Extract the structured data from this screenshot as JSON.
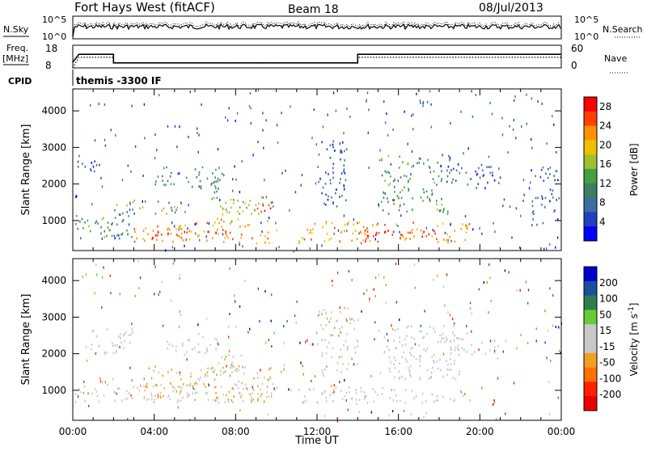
{
  "header": {
    "radar": "Fort Hays West (fitACF)",
    "beam": "Beam 18",
    "date": "08/Jul/2013"
  },
  "top_panels": {
    "nsky_label": "N.Sky",
    "nsky_ticks": [
      "10^5",
      "10^0"
    ],
    "nsearch_label": "N.Search",
    "nsearch_ticks": [
      "10^5",
      "10^0"
    ],
    "freq_label": "Freq.",
    "freq_unit": "[MHz]",
    "freq_ticks": [
      "18",
      "8"
    ],
    "nave_label": "Nave",
    "nave_ticks": [
      "60",
      "0"
    ],
    "cpid_label": "CPID",
    "cpid_text": "themis  -3300  IF"
  },
  "colors": {
    "power": [
      "#0000ff",
      "#2040c0",
      "#3a6fa0",
      "#3d8060",
      "#44a040",
      "#a0c030",
      "#f0c000",
      "#ff9000",
      "#ff4000",
      "#ff0000"
    ],
    "velocity": [
      "#0000cc",
      "#1a4fa0",
      "#2e7d50",
      "#66cc33",
      "#c8c8c8",
      "#c8c8c8",
      "#f0a020",
      "#ff7000",
      "#ff2000",
      "#ee0000"
    ],
    "ground_scatter": "#b4b4b4"
  },
  "chart_data": [
    {
      "type": "line",
      "name": "freq-nave",
      "x_hours": [
        0.0,
        0.3,
        2.0,
        2.0,
        14.0,
        14.0,
        24.0
      ],
      "freq_mhz": [
        10.5,
        14.0,
        14.0,
        10.2,
        10.2,
        14.0,
        14.0
      ],
      "nave": [
        0,
        28,
        28,
        14,
        14,
        28,
        28
      ],
      "freq_range": [
        8,
        18
      ],
      "nave_range": [
        0,
        60
      ]
    },
    {
      "type": "heatmap",
      "name": "power",
      "title": "",
      "ylabel": "Slant Range [km]",
      "xlabel": "",
      "xlim_hours": [
        0,
        24
      ],
      "ylim_km": [
        180,
        4600
      ],
      "xticks": [
        "00:00",
        "04:00",
        "08:00",
        "12:00",
        "16:00",
        "20:00",
        "00:00"
      ],
      "yticks": [
        1000,
        2000,
        3000,
        4000
      ],
      "colorbar": {
        "label": "Power [dB]",
        "ticks": [
          4,
          8,
          12,
          16,
          20,
          24,
          28
        ],
        "range": [
          0,
          30
        ]
      },
      "regions": [
        {
          "t0": 3.0,
          "t1": 10.0,
          "r0": 400,
          "r1": 1000,
          "value": 22
        },
        {
          "t0": 3.8,
          "t1": 7.5,
          "r0": 500,
          "r1": 800,
          "value": 27
        },
        {
          "t0": 6.8,
          "t1": 10.0,
          "r0": 1000,
          "r1": 1700,
          "value": 16
        },
        {
          "t0": 8.8,
          "t1": 9.8,
          "r0": 1200,
          "r1": 1600,
          "value": 26
        },
        {
          "t0": 2.0,
          "t1": 5.5,
          "r0": 1200,
          "r1": 1600,
          "value": 14
        },
        {
          "t0": 4.0,
          "t1": 7.5,
          "r0": 1900,
          "r1": 2500,
          "value": 12
        },
        {
          "t0": 0.1,
          "t1": 3.0,
          "r0": 500,
          "r1": 1200,
          "value": 12
        },
        {
          "t0": 0.2,
          "t1": 1.5,
          "r0": 2300,
          "r1": 2800,
          "value": 6
        },
        {
          "t0": 11.0,
          "t1": 19.5,
          "r0": 400,
          "r1": 1000,
          "value": 22
        },
        {
          "t0": 14.0,
          "t1": 18.0,
          "r0": 450,
          "r1": 750,
          "value": 27
        },
        {
          "t0": 15.0,
          "t1": 18.5,
          "r0": 1200,
          "r1": 2800,
          "value": 12
        },
        {
          "t0": 18.0,
          "t1": 21.0,
          "r0": 2000,
          "r1": 2600,
          "value": 6
        },
        {
          "t0": 12.0,
          "t1": 13.5,
          "r0": 1400,
          "r1": 3200,
          "value": 6
        },
        {
          "t0": 22.5,
          "t1": 23.9,
          "r0": 900,
          "r1": 2500,
          "value": 6
        }
      ]
    },
    {
      "type": "heatmap",
      "name": "velocity",
      "title": "",
      "ylabel": "Slant Range [km]",
      "xlabel": "Time UT",
      "xlim_hours": [
        0,
        24
      ],
      "ylim_km": [
        180,
        4600
      ],
      "xticks": [
        "00:00",
        "04:00",
        "08:00",
        "12:00",
        "16:00",
        "20:00",
        "00:00"
      ],
      "yticks": [
        1000,
        2000,
        3000,
        4000
      ],
      "colorbar": {
        "label": "Velocity [m s^-1]",
        "ticks": [
          200,
          100,
          50,
          15,
          -15,
          -50,
          -100,
          -200
        ],
        "range": [
          -250,
          250
        ]
      },
      "regions": [
        {
          "t0": 0.1,
          "t1": 10.0,
          "r0": 700,
          "r1": 1200,
          "value": 0
        },
        {
          "t0": 3.5,
          "t1": 9.8,
          "r0": 700,
          "r1": 1700,
          "value": -60
        },
        {
          "t0": 6.5,
          "t1": 8.3,
          "r0": 1500,
          "r1": 2000,
          "value": 40
        },
        {
          "t0": 4.5,
          "t1": 7.5,
          "r0": 2000,
          "r1": 2500,
          "value": 0
        },
        {
          "t0": 0.5,
          "t1": 3.0,
          "r0": 2000,
          "r1": 2700,
          "value": 0
        },
        {
          "t0": 11.0,
          "t1": 19.5,
          "r0": 650,
          "r1": 1100,
          "value": 0
        },
        {
          "t0": 15.0,
          "t1": 19.0,
          "r0": 1300,
          "r1": 2800,
          "value": 0
        },
        {
          "t0": 18.0,
          "t1": 21.0,
          "r0": 2000,
          "r1": 2600,
          "value": 0
        },
        {
          "t0": 12.0,
          "t1": 14.0,
          "r0": 1500,
          "r1": 3300,
          "value": 30
        }
      ]
    }
  ]
}
